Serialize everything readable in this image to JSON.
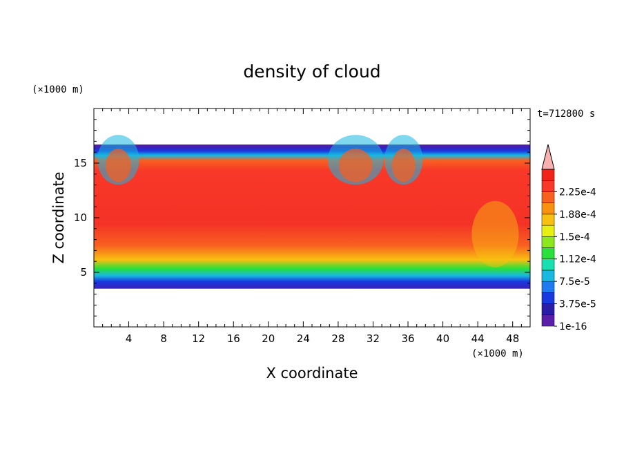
{
  "chart_data": {
    "type": "heatmap",
    "title": "density of cloud",
    "xlabel": "X coordinate",
    "ylabel": "Z coordinate",
    "x_unit": "(×1000 m)",
    "y_unit": "(×1000 m)",
    "time_label": "t=712800 s",
    "xlim": [
      0,
      50
    ],
    "ylim": [
      0,
      20
    ],
    "x_ticks": [
      4,
      8,
      12,
      16,
      20,
      24,
      28,
      32,
      36,
      40,
      44,
      48
    ],
    "y_ticks": [
      5,
      10,
      15
    ],
    "cloud_base_km": 3.5,
    "cloud_top_km": 16.7,
    "colorbar": {
      "labels": [
        "1e-16",
        "3.75e-5",
        "7.5e-5",
        "1.12e-4",
        "1.5e-4",
        "1.88e-4",
        "2.25e-4"
      ],
      "colors": [
        "#5a1fa8",
        "#2a1ea8",
        "#1838e0",
        "#1f7af0",
        "#18b8e0",
        "#18e0b0",
        "#2ae03a",
        "#8ae81c",
        "#e8f010",
        "#f8c010",
        "#f89010",
        "#f86020",
        "#f83828",
        "#f02418",
        "#f8b0b0"
      ],
      "extend": "max"
    }
  }
}
